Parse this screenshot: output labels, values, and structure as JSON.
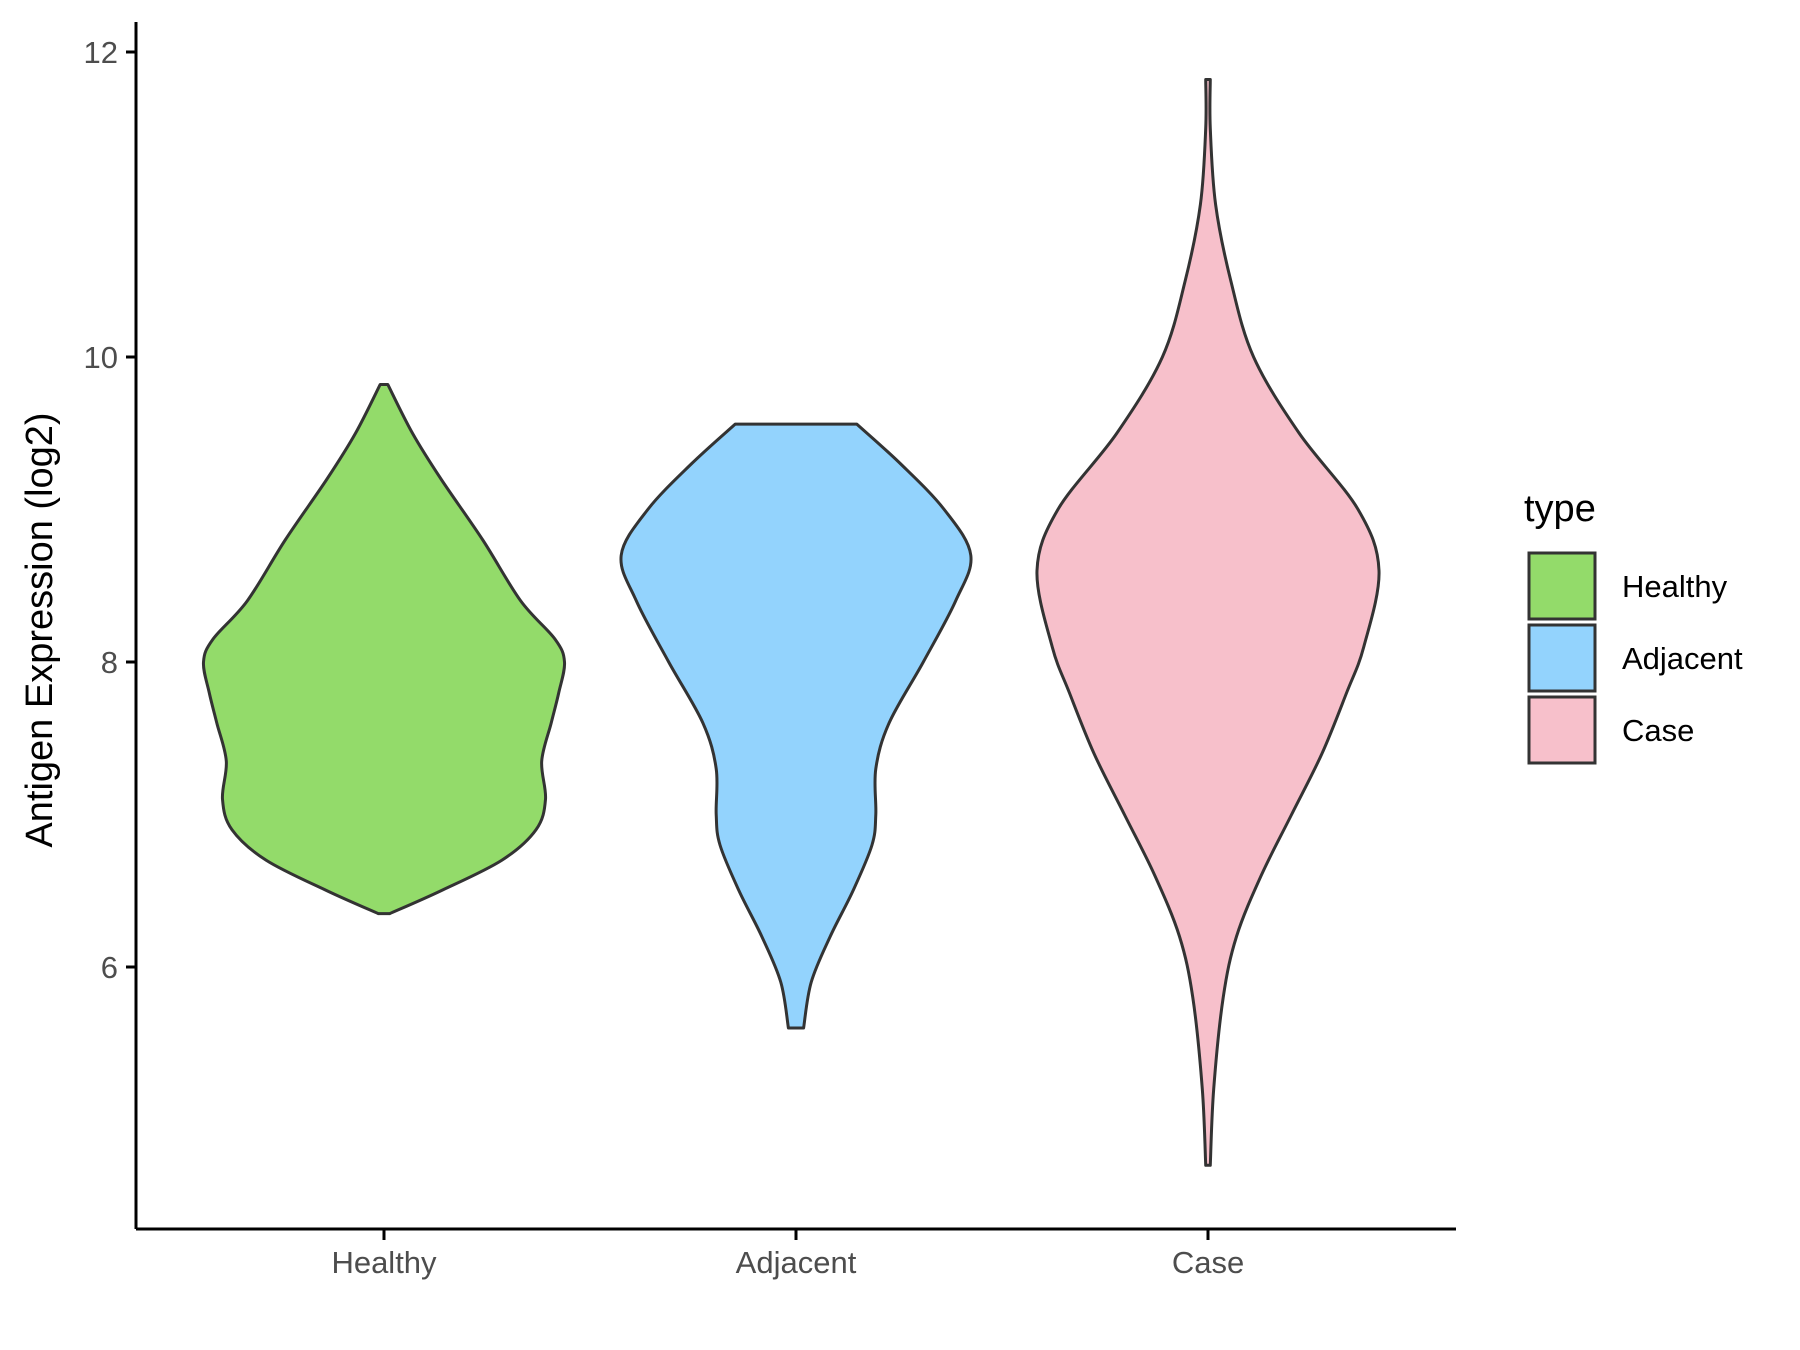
{
  "chart_data": {
    "type": "violin",
    "xlabel": "",
    "ylabel": "Antigen Expression (log2)",
    "ylim": [
      4.6,
      12.2
    ],
    "yticks": [
      6,
      8,
      10,
      12
    ],
    "categories": [
      "Healthy",
      "Adjacent",
      "Case"
    ],
    "grid": false,
    "legend": {
      "title": "type",
      "position": "right",
      "entries": [
        "Healthy",
        "Adjacent",
        "Case"
      ]
    },
    "colors": {
      "Healthy": "#93DB6A",
      "Adjacent": "#93D3FD",
      "Case": "#F7C0CB",
      "outline": "#333333"
    },
    "series": [
      {
        "category": "Healthy",
        "min": 6.35,
        "max": 9.82,
        "density": [
          [
            6.35,
            0.03
          ],
          [
            6.5,
            0.3
          ],
          [
            6.7,
            0.62
          ],
          [
            6.9,
            0.8
          ],
          [
            7.1,
            0.85
          ],
          [
            7.35,
            0.83
          ],
          [
            7.6,
            0.88
          ],
          [
            7.8,
            0.92
          ],
          [
            8.0,
            0.95
          ],
          [
            8.15,
            0.9
          ],
          [
            8.4,
            0.72
          ],
          [
            8.8,
            0.52
          ],
          [
            9.2,
            0.3
          ],
          [
            9.5,
            0.15
          ],
          [
            9.82,
            0.02
          ]
        ]
      },
      {
        "category": "Adjacent",
        "min": 5.6,
        "max": 9.56,
        "density": [
          [
            5.6,
            0.04
          ],
          [
            5.9,
            0.08
          ],
          [
            6.2,
            0.18
          ],
          [
            6.5,
            0.3
          ],
          [
            6.8,
            0.4
          ],
          [
            7.0,
            0.42
          ],
          [
            7.3,
            0.42
          ],
          [
            7.6,
            0.49
          ],
          [
            8.0,
            0.67
          ],
          [
            8.4,
            0.84
          ],
          [
            8.7,
            0.92
          ],
          [
            9.0,
            0.78
          ],
          [
            9.3,
            0.55
          ],
          [
            9.56,
            0.32
          ]
        ]
      },
      {
        "category": "Case",
        "min": 4.7,
        "max": 11.82,
        "density": [
          [
            4.7,
            0.0
          ],
          [
            5.2,
            0.03
          ],
          [
            5.8,
            0.08
          ],
          [
            6.2,
            0.15
          ],
          [
            6.6,
            0.28
          ],
          [
            7.0,
            0.44
          ],
          [
            7.4,
            0.6
          ],
          [
            7.8,
            0.73
          ],
          [
            8.1,
            0.82
          ],
          [
            8.6,
            0.9
          ],
          [
            9.0,
            0.79
          ],
          [
            9.5,
            0.48
          ],
          [
            10.0,
            0.24
          ],
          [
            10.5,
            0.12
          ],
          [
            11.0,
            0.04
          ],
          [
            11.5,
            0.01
          ],
          [
            11.82,
            0.0
          ]
        ]
      }
    ]
  }
}
